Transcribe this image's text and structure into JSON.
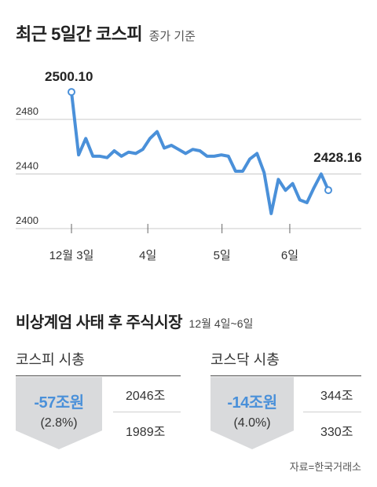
{
  "title": "최근 5일간 코스피",
  "subtitle": "종가 기준",
  "chart_data": {
    "type": "line",
    "series": [
      {
        "values": [
          2500.1,
          2454,
          2466,
          2453,
          2453,
          2452,
          2457,
          2453,
          2456,
          2455,
          2458,
          2466,
          2471,
          2459,
          2461,
          2458,
          2455,
          2458,
          2457,
          2453,
          2453,
          2454,
          2453,
          2442,
          2442,
          2451,
          2455,
          2441,
          2411,
          2436,
          2428,
          2433,
          2421,
          2419,
          2430,
          2440,
          2428.16
        ]
      }
    ],
    "x_ticks": [
      "12월 3일",
      "4일",
      "5일",
      "6일"
    ],
    "x_tick_index": [
      0,
      10.7,
      21.1,
      30.6
    ],
    "y_ticks": [
      2400,
      2440,
      2480
    ],
    "ylim": [
      2396,
      2510
    ],
    "annotations": [
      {
        "label": "2500.10",
        "index": 0
      },
      {
        "label": "2428.16",
        "index": 36
      }
    ],
    "line_color": "#4a90d9",
    "grid": true
  },
  "section2": {
    "title": "비상계엄 사태 후 주식시장",
    "subtitle": "12월 4일~6일"
  },
  "kospi": {
    "title": "코스피 시총",
    "change": "-57조원",
    "pct": "(2.8%)",
    "before": "2046조",
    "after": "1989조"
  },
  "kosdaq": {
    "title": "코스닥 시총",
    "change": "-14조원",
    "pct": "(4.0%)",
    "before": "344조",
    "after": "330조"
  },
  "source": "자료=한국거래소",
  "colors": {
    "accent": "#4a90d9",
    "badge_bg": "#d9dadc"
  }
}
